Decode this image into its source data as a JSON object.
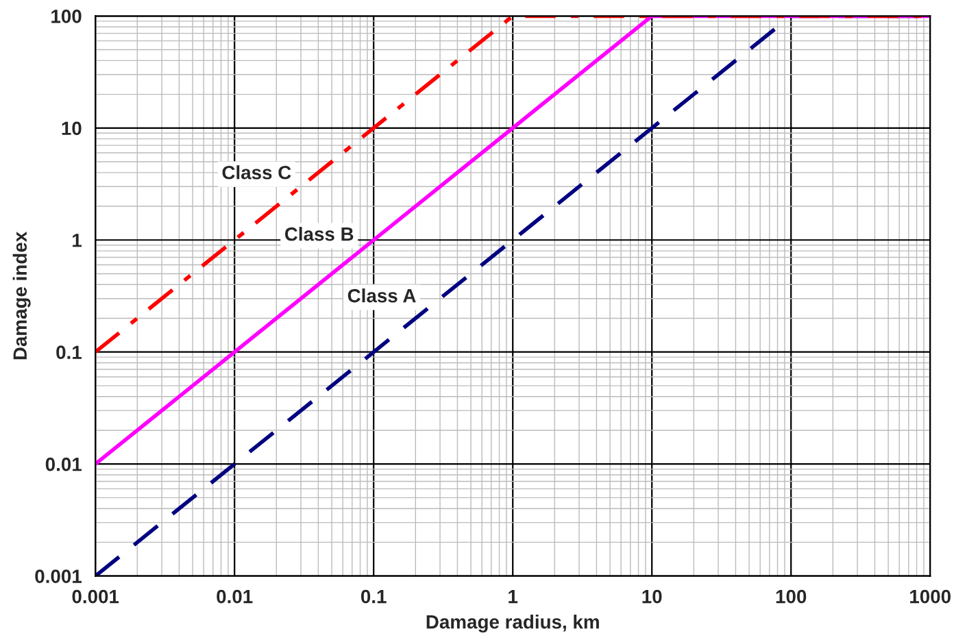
{
  "chart_data": {
    "type": "line",
    "xlabel": "Damage radius, km",
    "ylabel": "Damage index",
    "log": "xy",
    "grid": true,
    "xlim": [
      0.001,
      1000
    ],
    "ylim": [
      0.001,
      100
    ],
    "xticks": [
      0.001,
      0.01,
      0.1,
      1,
      10,
      100,
      1000
    ],
    "yticks": [
      0.001,
      0.01,
      0.1,
      1,
      10,
      100
    ],
    "series": [
      {
        "name": "Class A",
        "color": "#000080",
        "line_style": "dashed",
        "x": [
          0.001,
          100,
          1000
        ],
        "values": [
          0.001,
          100,
          100
        ]
      },
      {
        "name": "Class B",
        "color": "#ff00ff",
        "line_style": "solid",
        "x": [
          0.001,
          10,
          1000
        ],
        "values": [
          0.01,
          100,
          100
        ]
      },
      {
        "name": "Class C",
        "color": "#ff0000",
        "line_style": "dashdot",
        "x": [
          0.001,
          1,
          1000
        ],
        "values": [
          0.1,
          100,
          100
        ]
      }
    ]
  }
}
